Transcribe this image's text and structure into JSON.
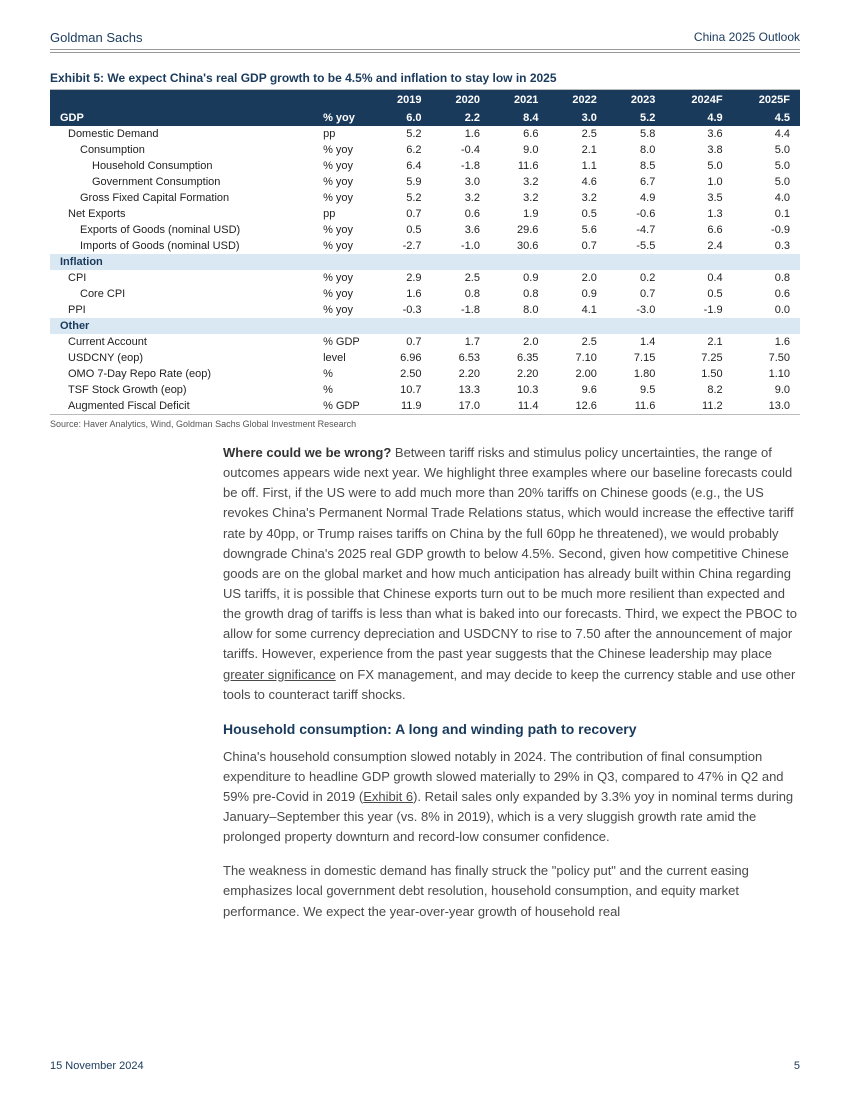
{
  "header": {
    "left": "Goldman Sachs",
    "right": "China 2025 Outlook"
  },
  "exhibit": {
    "title": "Exhibit 5: We expect China's real GDP growth to be 4.5% and inflation to stay low in 2025",
    "columns": [
      "",
      "",
      "2019",
      "2020",
      "2021",
      "2022",
      "2023",
      "2024F",
      "2025F"
    ],
    "sections": [
      {
        "type": "gdp",
        "label": "GDP",
        "unit": "% yoy",
        "vals": [
          "6.0",
          "2.2",
          "8.4",
          "3.0",
          "5.2",
          "4.9",
          "4.5"
        ]
      },
      {
        "type": "row",
        "indent": 1,
        "label": "Domestic Demand",
        "unit": "pp",
        "vals": [
          "5.2",
          "1.6",
          "6.6",
          "2.5",
          "5.8",
          "3.6",
          "4.4"
        ]
      },
      {
        "type": "row",
        "indent": 2,
        "label": "Consumption",
        "unit": "% yoy",
        "vals": [
          "6.2",
          "-0.4",
          "9.0",
          "2.1",
          "8.0",
          "3.8",
          "5.0"
        ]
      },
      {
        "type": "row",
        "indent": 3,
        "label": "Household Consumption",
        "unit": "% yoy",
        "vals": [
          "6.4",
          "-1.8",
          "11.6",
          "1.1",
          "8.5",
          "5.0",
          "5.0"
        ]
      },
      {
        "type": "row",
        "indent": 3,
        "label": "Government Consumption",
        "unit": "% yoy",
        "vals": [
          "5.9",
          "3.0",
          "3.2",
          "4.6",
          "6.7",
          "1.0",
          "5.0"
        ]
      },
      {
        "type": "row",
        "indent": 2,
        "label": "Gross Fixed Capital Formation",
        "unit": "% yoy",
        "vals": [
          "5.2",
          "3.2",
          "3.2",
          "3.2",
          "4.9",
          "3.5",
          "4.0"
        ]
      },
      {
        "type": "row",
        "indent": 1,
        "label": "Net Exports",
        "unit": "pp",
        "vals": [
          "0.7",
          "0.6",
          "1.9",
          "0.5",
          "-0.6",
          "1.3",
          "0.1"
        ]
      },
      {
        "type": "row",
        "indent": 2,
        "label": "Exports of Goods (nominal USD)",
        "unit": "% yoy",
        "vals": [
          "0.5",
          "3.6",
          "29.6",
          "5.6",
          "-4.7",
          "6.6",
          "-0.9"
        ]
      },
      {
        "type": "row",
        "indent": 2,
        "label": "Imports of Goods (nominal USD)",
        "unit": "% yoy",
        "vals": [
          "-2.7",
          "-1.0",
          "30.6",
          "0.7",
          "-5.5",
          "2.4",
          "0.3"
        ]
      },
      {
        "type": "light",
        "label": "Inflation"
      },
      {
        "type": "row",
        "indent": 1,
        "label": "CPI",
        "unit": "% yoy",
        "vals": [
          "2.9",
          "2.5",
          "0.9",
          "2.0",
          "0.2",
          "0.4",
          "0.8"
        ]
      },
      {
        "type": "row",
        "indent": 2,
        "label": "Core CPI",
        "unit": "% yoy",
        "vals": [
          "1.6",
          "0.8",
          "0.8",
          "0.9",
          "0.7",
          "0.5",
          "0.6"
        ]
      },
      {
        "type": "row",
        "indent": 1,
        "label": "PPI",
        "unit": "% yoy",
        "vals": [
          "-0.3",
          "-1.8",
          "8.0",
          "4.1",
          "-3.0",
          "-1.9",
          "0.0"
        ]
      },
      {
        "type": "light",
        "label": "Other"
      },
      {
        "type": "row",
        "indent": 1,
        "label": "Current Account",
        "unit": "% GDP",
        "vals": [
          "0.7",
          "1.7",
          "2.0",
          "2.5",
          "1.4",
          "2.1",
          "1.6"
        ]
      },
      {
        "type": "row",
        "indent": 1,
        "label": "USDCNY (eop)",
        "unit": "level",
        "vals": [
          "6.96",
          "6.53",
          "6.35",
          "7.10",
          "7.15",
          "7.25",
          "7.50"
        ]
      },
      {
        "type": "row",
        "indent": 1,
        "label": "OMO 7-Day Repo Rate (eop)",
        "unit": "%",
        "vals": [
          "2.50",
          "2.20",
          "2.20",
          "2.00",
          "1.80",
          "1.50",
          "1.10"
        ]
      },
      {
        "type": "row",
        "indent": 1,
        "label": "TSF Stock Growth (eop)",
        "unit": "%",
        "vals": [
          "10.7",
          "13.3",
          "10.3",
          "9.6",
          "9.5",
          "8.2",
          "9.0"
        ]
      },
      {
        "type": "row",
        "indent": 1,
        "label": "Augmented Fiscal Deficit",
        "unit": "% GDP",
        "vals": [
          "11.9",
          "17.0",
          "11.4",
          "12.6",
          "11.6",
          "11.2",
          "13.0"
        ]
      }
    ],
    "source": "Source: Haver Analytics, Wind, Goldman Sachs Global Investment Research"
  },
  "body": {
    "p1_lead": "Where could we be wrong?",
    "p1_rest": " Between tariff risks and stimulus policy uncertainties, the range of outcomes appears wide next year. We highlight three examples where our baseline forecasts could be off. First, if the US were to add much more than 20% tariffs on Chinese goods (e.g., the US revokes China's Permanent Normal Trade Relations status, which would increase the effective tariff rate by 40pp, or Trump raises tariffs on China by the full 60pp he threatened), we would probably downgrade China's 2025 real GDP growth to below 4.5%. Second, given how competitive Chinese goods are on the global market and how much anticipation has already built within China regarding US tariffs, it is possible that Chinese exports turn out to be much more resilient than expected and the growth drag of tariffs is less than what is baked into our forecasts. Third, we expect the PBOC to allow for some currency depreciation and USDCNY to rise to 7.50 after the announcement of major tariffs. However, experience from the past year suggests that the Chinese leadership may place ",
    "p1_u": "greater significance",
    "p1_tail": " on FX management, and may decide to keep the currency stable and use other tools to counteract tariff shocks.",
    "h2": "Household consumption: A long and winding path to recovery",
    "p2a": "China's household consumption slowed notably in 2024. The contribution of final consumption expenditure to headline GDP growth slowed materially to 29% in Q3, compared to 47% in Q2 and 59% pre-Covid in 2019 (",
    "p2u": "Exhibit 6",
    "p2b": "). Retail sales only expanded by 3.3% yoy in nominal terms during January–September this year (vs. 8% in 2019), which is a very sluggish growth rate amid the prolonged property downturn and record-low consumer confidence.",
    "p3": "The weakness in domestic demand has finally struck the \"policy put\" and the current easing emphasizes local government debt resolution, household consumption, and equity market performance. We expect the year-over-year growth of household real"
  },
  "footer": {
    "date": "15 November 2024",
    "page": "5"
  },
  "colors": {
    "navy": "#1a3a5c",
    "light_blue": "#d9e8f2",
    "text": "#4a4a4a"
  }
}
